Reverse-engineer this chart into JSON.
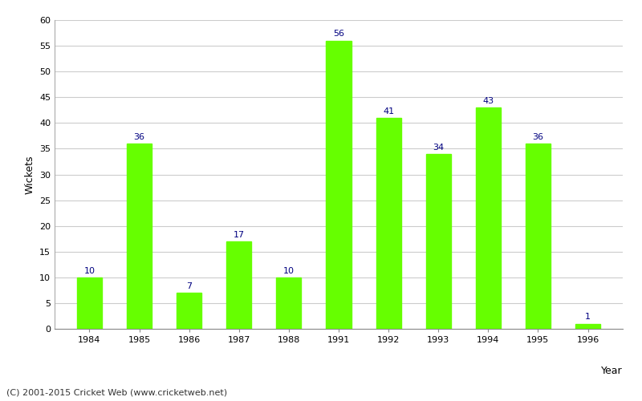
{
  "categories": [
    "1984",
    "1985",
    "1986",
    "1987",
    "1988",
    "1991",
    "1992",
    "1993",
    "1994",
    "1995",
    "1996"
  ],
  "values": [
    10,
    36,
    7,
    17,
    10,
    56,
    41,
    34,
    43,
    36,
    1
  ],
  "bar_color": "#66ff00",
  "label_color": "#000080",
  "xlabel": "Year",
  "ylabel": "Wickets",
  "ylim": [
    0,
    60
  ],
  "yticks": [
    0,
    5,
    10,
    15,
    20,
    25,
    30,
    35,
    40,
    45,
    50,
    55,
    60
  ],
  "background_color": "#ffffff",
  "grid_color": "#cccccc",
  "footer": "(C) 2001-2015 Cricket Web (www.cricketweb.net)",
  "label_fontsize": 8,
  "axis_label_fontsize": 9,
  "tick_fontsize": 8,
  "footer_fontsize": 8,
  "bar_width": 0.5
}
